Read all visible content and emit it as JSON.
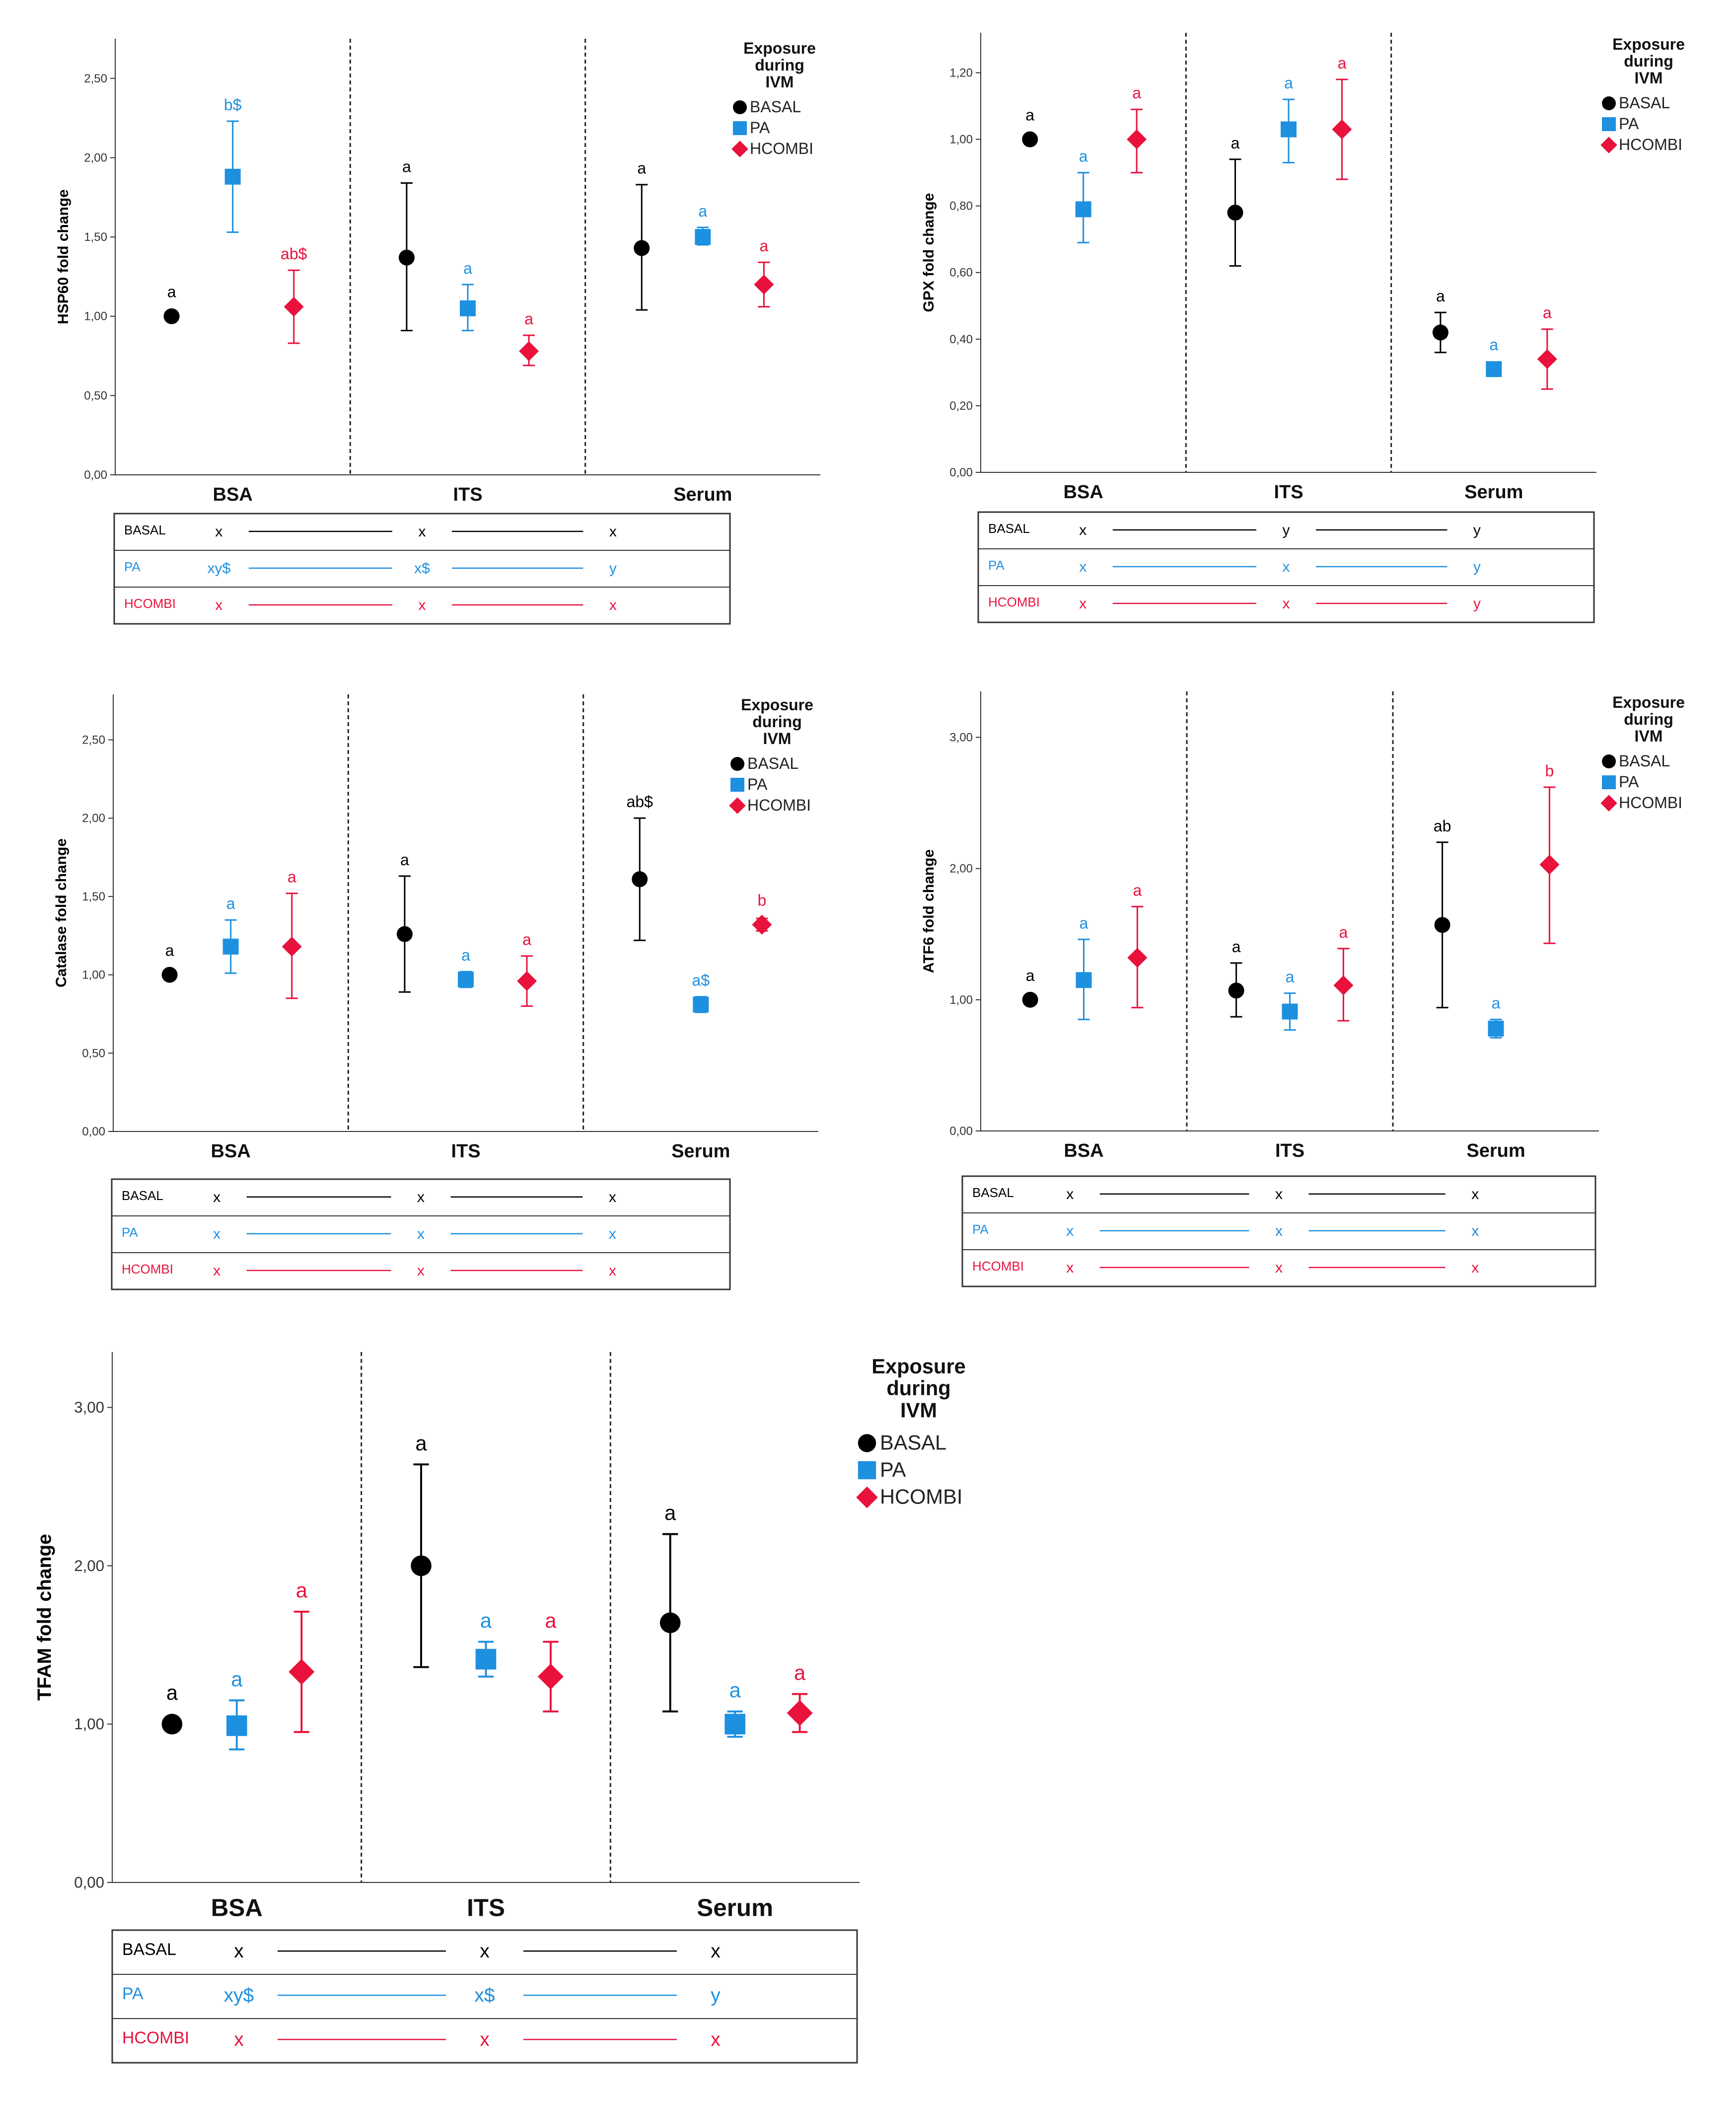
{
  "colors": {
    "basal": "#000000",
    "pa": "#1E90E0",
    "hcombi": "#E8123C",
    "axis": "#333333",
    "divider": "#222222"
  },
  "chart_data": [
    {
      "type": "scatter",
      "subtype": "error-bar",
      "ylabel": "HSP60 fold change",
      "ylim": [
        0,
        2.75
      ],
      "yticks": [
        0,
        0.5,
        1.0,
        1.5,
        2.0,
        2.5
      ],
      "ytick_labels": [
        "0,00",
        "0,50",
        "1,00",
        "1,50",
        "2,00",
        "2,50"
      ],
      "categories": [
        "BSA",
        "ITS",
        "Serum"
      ],
      "legend": {
        "title": [
          "Exposure",
          "during",
          "IVM"
        ],
        "entries": [
          "BASAL",
          "PA",
          "HCOMBI"
        ],
        "position": "right"
      },
      "series": [
        {
          "name": "BASAL",
          "marker": "circle",
          "mean": [
            1.0,
            1.37,
            1.43
          ],
          "low": [
            1.0,
            0.91,
            1.04
          ],
          "high": [
            1.0,
            1.84,
            1.83
          ],
          "labels": [
            "a",
            "a",
            "a"
          ]
        },
        {
          "name": "PA",
          "marker": "square",
          "mean": [
            1.88,
            1.05,
            1.5
          ],
          "low": [
            1.53,
            0.91,
            1.45
          ],
          "high": [
            2.23,
            1.2,
            1.56
          ],
          "labels": [
            "b$",
            "a",
            "a"
          ]
        },
        {
          "name": "HCOMBI",
          "marker": "diamond",
          "mean": [
            1.06,
            0.78,
            1.2
          ],
          "low": [
            0.83,
            0.69,
            1.06
          ],
          "high": [
            1.29,
            0.88,
            1.34
          ],
          "labels": [
            "ab$",
            "a",
            "a"
          ]
        }
      ],
      "stats_table": [
        {
          "name": "BASAL",
          "values": [
            "x",
            "x",
            "x"
          ]
        },
        {
          "name": "PA",
          "values": [
            "xy$",
            "x$",
            "y"
          ]
        },
        {
          "name": "HCOMBI",
          "values": [
            "x",
            "x",
            "x"
          ]
        }
      ]
    },
    {
      "type": "scatter",
      "subtype": "error-bar",
      "ylabel": "GPX fold change",
      "ylim": [
        0,
        1.32
      ],
      "yticks": [
        0,
        0.2,
        0.4,
        0.6,
        0.8,
        1.0,
        1.2
      ],
      "ytick_labels": [
        "0,00",
        "0,20",
        "0,40",
        "0,60",
        "0,80",
        "1,00",
        "1,20"
      ],
      "categories": [
        "BSA",
        "ITS",
        "Serum"
      ],
      "legend": {
        "title": [
          "Exposure",
          "during",
          "IVM"
        ],
        "entries": [
          "BASAL",
          "PA",
          "HCOMBI"
        ],
        "position": "right"
      },
      "series": [
        {
          "name": "BASAL",
          "marker": "circle",
          "mean": [
            1.0,
            0.78,
            0.42
          ],
          "low": [
            1.0,
            0.62,
            0.36
          ],
          "high": [
            1.0,
            0.94,
            0.48
          ],
          "labels": [
            "a",
            "a",
            "a"
          ]
        },
        {
          "name": "PA",
          "marker": "square",
          "mean": [
            0.79,
            1.03,
            0.31
          ],
          "low": [
            0.69,
            0.93,
            0.29
          ],
          "high": [
            0.9,
            1.12,
            0.33
          ],
          "labels": [
            "a",
            "a",
            "a"
          ]
        },
        {
          "name": "HCOMBI",
          "marker": "diamond",
          "mean": [
            1.0,
            1.03,
            0.34
          ],
          "low": [
            0.9,
            0.88,
            0.25
          ],
          "high": [
            1.09,
            1.18,
            0.43
          ],
          "labels": [
            "a",
            "a",
            "a"
          ]
        }
      ],
      "stats_table": [
        {
          "name": "BASAL",
          "values": [
            "x",
            "y",
            "y"
          ]
        },
        {
          "name": "PA",
          "values": [
            "x",
            "x",
            "y"
          ]
        },
        {
          "name": "HCOMBI",
          "values": [
            "x",
            "x",
            "y"
          ]
        }
      ]
    },
    {
      "type": "scatter",
      "subtype": "error-bar",
      "ylabel": "Catalase fold change",
      "ylim": [
        0,
        2.79
      ],
      "yticks": [
        0,
        0.5,
        1.0,
        1.5,
        2.0,
        2.5
      ],
      "ytick_labels": [
        "0,00",
        "0,50",
        "1,00",
        "1,50",
        "2,00",
        "2,50"
      ],
      "categories": [
        "BSA",
        "ITS",
        "Serum"
      ],
      "legend": {
        "title": [
          "Exposure",
          "during",
          "IVM"
        ],
        "entries": [
          "BASAL",
          "PA",
          "HCOMBI"
        ],
        "position": "right"
      },
      "series": [
        {
          "name": "BASAL",
          "marker": "circle",
          "mean": [
            1.0,
            1.26,
            1.61
          ],
          "low": [
            1.0,
            0.89,
            1.22
          ],
          "high": [
            1.0,
            1.63,
            2.0
          ],
          "labels": [
            "a",
            "a",
            "ab$"
          ]
        },
        {
          "name": "PA",
          "marker": "square",
          "mean": [
            1.18,
            0.97,
            0.81
          ],
          "low": [
            1.01,
            0.92,
            0.76
          ],
          "high": [
            1.35,
            1.02,
            0.86
          ],
          "labels": [
            "a",
            "a",
            "a$"
          ]
        },
        {
          "name": "HCOMBI",
          "marker": "diamond",
          "mean": [
            1.18,
            0.96,
            1.32
          ],
          "low": [
            0.85,
            0.8,
            1.28
          ],
          "high": [
            1.52,
            1.12,
            1.36
          ],
          "labels": [
            "a",
            "a",
            "b"
          ]
        }
      ],
      "stats_table": [
        {
          "name": "BASAL",
          "values": [
            "x",
            "x",
            "x"
          ]
        },
        {
          "name": "PA",
          "values": [
            "x",
            "x",
            "x"
          ]
        },
        {
          "name": "HCOMBI",
          "values": [
            "x",
            "x",
            "x"
          ]
        }
      ]
    },
    {
      "type": "scatter",
      "subtype": "error-bar",
      "ylabel": "ATF6 fold change",
      "ylim": [
        0,
        3.35
      ],
      "yticks": [
        0,
        1.0,
        2.0,
        3.0
      ],
      "ytick_labels": [
        "0,00",
        "1,00",
        "2,00",
        "3,00"
      ],
      "categories": [
        "BSA",
        "ITS",
        "Serum"
      ],
      "legend": {
        "title": [
          "Exposure",
          "during",
          "IVM"
        ],
        "entries": [
          "BASAL",
          "PA",
          "HCOMBI"
        ],
        "position": "right"
      },
      "series": [
        {
          "name": "BASAL",
          "marker": "circle",
          "mean": [
            1.0,
            1.07,
            1.57
          ],
          "low": [
            1.0,
            0.87,
            0.94
          ],
          "high": [
            1.0,
            1.28,
            2.2
          ],
          "labels": [
            "a",
            "a",
            "ab"
          ]
        },
        {
          "name": "PA",
          "marker": "square",
          "mean": [
            1.15,
            0.91,
            0.78
          ],
          "low": [
            0.85,
            0.77,
            0.71
          ],
          "high": [
            1.46,
            1.05,
            0.85
          ],
          "labels": [
            "a",
            "a",
            "a"
          ]
        },
        {
          "name": "HCOMBI",
          "marker": "diamond",
          "mean": [
            1.32,
            1.11,
            2.03
          ],
          "low": [
            0.94,
            0.84,
            1.43
          ],
          "high": [
            1.71,
            1.39,
            2.62
          ],
          "labels": [
            "a",
            "a",
            "b"
          ]
        }
      ],
      "stats_table": [
        {
          "name": "BASAL",
          "values": [
            "x",
            "x",
            "x"
          ]
        },
        {
          "name": "PA",
          "values": [
            "x",
            "x",
            "x"
          ]
        },
        {
          "name": "HCOMBI",
          "values": [
            "x",
            "x",
            "x"
          ]
        }
      ]
    },
    {
      "type": "scatter",
      "subtype": "error-bar",
      "ylabel": "TFAM fold change",
      "ylim": [
        0,
        3.35
      ],
      "yticks": [
        0,
        1.0,
        2.0,
        3.0
      ],
      "ytick_labels": [
        "0,00",
        "1,00",
        "2,00",
        "3,00"
      ],
      "categories": [
        "BSA",
        "ITS",
        "Serum"
      ],
      "legend": {
        "title": [
          "Exposure",
          "during",
          "IVM"
        ],
        "entries": [
          "BASAL",
          "PA",
          "HCOMBI"
        ],
        "position": "right"
      },
      "series": [
        {
          "name": "BASAL",
          "marker": "circle",
          "mean": [
            1.0,
            2.0,
            1.64
          ],
          "low": [
            1.0,
            1.36,
            1.08
          ],
          "high": [
            1.0,
            2.64,
            2.2
          ],
          "labels": [
            "a",
            "a",
            "a"
          ]
        },
        {
          "name": "PA",
          "marker": "square",
          "mean": [
            0.99,
            1.41,
            1.0
          ],
          "low": [
            0.84,
            1.3,
            0.92
          ],
          "high": [
            1.15,
            1.52,
            1.08
          ],
          "labels": [
            "a",
            "a",
            "a"
          ]
        },
        {
          "name": "HCOMBI",
          "marker": "diamond",
          "mean": [
            1.33,
            1.3,
            1.07
          ],
          "low": [
            0.95,
            1.08,
            0.95
          ],
          "high": [
            1.71,
            1.52,
            1.19
          ],
          "labels": [
            "a",
            "a",
            "a"
          ]
        }
      ],
      "stats_table": [
        {
          "name": "BASAL",
          "values": [
            "x",
            "x",
            "x"
          ]
        },
        {
          "name": "PA",
          "values": [
            "xy$",
            "x$",
            "y"
          ]
        },
        {
          "name": "HCOMBI",
          "values": [
            "x",
            "x",
            "x"
          ]
        }
      ]
    }
  ]
}
